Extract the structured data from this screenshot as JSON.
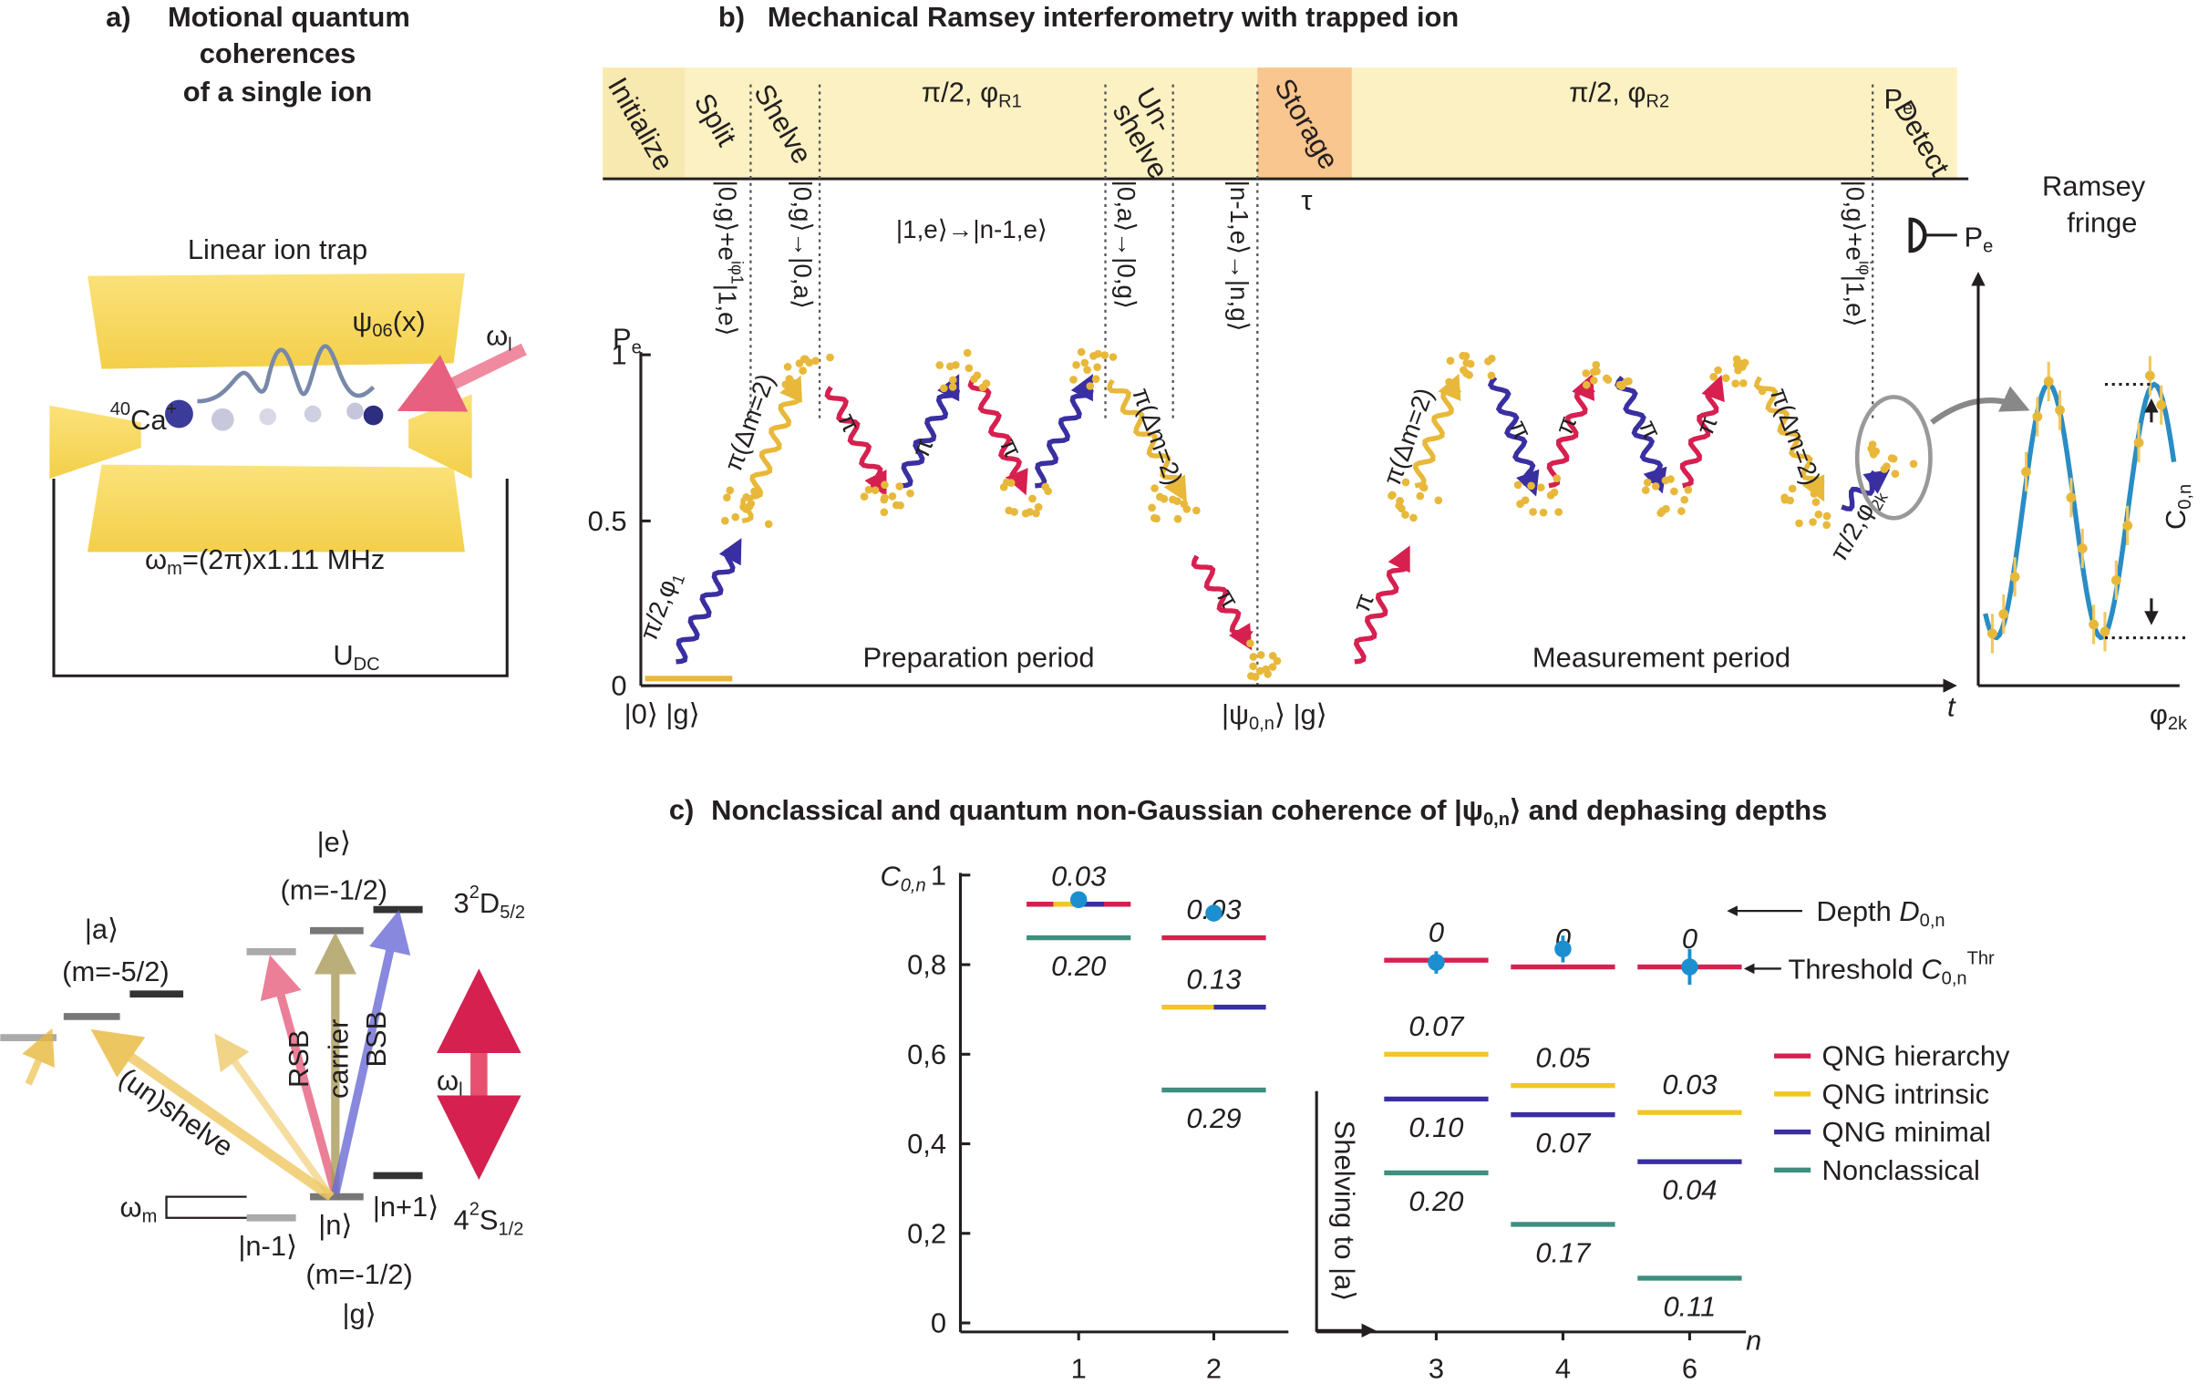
{
  "panel_a": {
    "label": "a)",
    "title": [
      "Motional quantum",
      "coherences",
      "of a single ion"
    ],
    "trap": "Linear ion trap",
    "psi": [
      "ψ",
      "06",
      "(x)"
    ],
    "omega_l": [
      "ω",
      "l"
    ],
    "ion": [
      "40",
      "Ca",
      "+"
    ],
    "omega_m": [
      "ω",
      "m",
      "=(2π)x1.11 MHz"
    ],
    "udc": [
      "U",
      "DC"
    ],
    "levels": {
      "e": "|e⟩",
      "e_m": "(m=-1/2)",
      "a": "|a⟩",
      "a_m": "(m=-5/2)",
      "d": [
        "3",
        "2",
        "D",
        "5/2"
      ],
      "s": [
        "4",
        "2",
        "S",
        "1/2"
      ],
      "omega_l": [
        "ω",
        "l"
      ],
      "rsb": "RSB",
      "carrier": "carrier",
      "bsb": "BSB",
      "shelve": "(un)shelve",
      "omega_m": [
        "ω",
        "m"
      ],
      "n_minus": "|n-1⟩",
      "n": "|n⟩",
      "n_plus": "|n+1⟩",
      "g_m": "(m=-1/2)",
      "g": "|g⟩"
    }
  },
  "panel_b": {
    "label": "b)",
    "title": "Mechanical Ramsey interferometry with trapped ion",
    "stages": {
      "initialize": "Initialize",
      "split": "Split",
      "shelve": "Shelve",
      "r1": [
        "π/2, φ",
        "R1"
      ],
      "unshelve": [
        "Un-",
        "shelve"
      ],
      "storage": "Storage",
      "tau": "τ",
      "r2": [
        "π/2, φ",
        "R2"
      ],
      "pe": [
        "P",
        "e"
      ],
      "detect": "Detect"
    },
    "states": {
      "split": [
        "|0,g⟩+e",
        "iφ1",
        "|1,e⟩"
      ],
      "shelve": "|0,g⟩→|0,a⟩",
      "shift": "|1,e⟩→|n-1,e⟩",
      "unshelve": "|0,a⟩→|0,g⟩",
      "store": "|n-1,e⟩→|n,g⟩",
      "detect": [
        "|0,g⟩+e",
        "iφ",
        "|1,e⟩"
      ]
    },
    "ylabel": [
      "P",
      "e"
    ],
    "yticks": [
      "1",
      "0.5",
      "0"
    ],
    "pulses": [
      [
        "π/2,φ",
        "1"
      ],
      "π(Δm=2)",
      "π",
      "π",
      "π",
      "π(Δm=2)",
      "π",
      "π",
      "π(Δm=2)",
      "π",
      "π",
      "π",
      "π",
      "π(Δm=2)",
      [
        "π/2,φ",
        "2k"
      ]
    ],
    "preparation": "Preparation period",
    "measurement": "Measurement period",
    "xlabel": "t",
    "start": "|0⟩ |g⟩",
    "end": [
      "|ψ",
      "0,n",
      "⟩ |g⟩"
    ],
    "fringe": {
      "title": [
        "Ramsey",
        "fringe"
      ],
      "pe": [
        "P",
        "e"
      ],
      "contrast": [
        "C",
        "0,n"
      ],
      "xlabel": [
        "φ",
        "2k"
      ]
    }
  },
  "chart_data": {
    "type": "levels",
    "label": "c)",
    "title": [
      "Nonclassical and quantum non-Gaussian coherence of |ψ",
      "0,n",
      "⟩ and dephasing depths"
    ],
    "ylabel": [
      "C",
      "0,n"
    ],
    "xlabel": "n",
    "categories": [
      "1",
      "2",
      "3",
      "4",
      "6"
    ],
    "ylim": [
      -0.02,
      1.03
    ],
    "yticks": [
      0,
      {
        "value": 0.2,
        "label": "0,2"
      },
      {
        "value": 0.4,
        "label": "0,4"
      },
      {
        "value": 0.6,
        "label": "0,6"
      },
      {
        "value": 0.8,
        "label": "0,8"
      },
      1
    ],
    "series": [
      {
        "name": "QNG hierarchy",
        "color": "#d6204f",
        "values": [
          0.935,
          0.86,
          0.81,
          0.795,
          0.795
        ],
        "depth_labels": [
          "0.03",
          "0.03",
          "0",
          "0",
          "0"
        ]
      },
      {
        "name": "QNG intrinsic",
        "color": "#f2c623",
        "values": [
          0.935,
          0.705,
          0.6,
          0.53,
          0.47
        ],
        "depth_labels": [
          null,
          "0.13",
          "0.07",
          "0.05",
          "0.03"
        ]
      },
      {
        "name": "QNG minimal",
        "color": "#3a2fa0",
        "values": [
          0.935,
          0.705,
          0.5,
          0.465,
          0.36
        ],
        "depth_labels": [
          null,
          null,
          "0.10",
          "0.07",
          "0.04"
        ]
      },
      {
        "name": "Nonclassical",
        "color": "#3d8f7e",
        "values": [
          0.86,
          0.52,
          0.335,
          0.22,
          0.1
        ],
        "depth_labels": [
          "0.20",
          "0.29",
          "0.20",
          "0.17",
          "0.11"
        ]
      }
    ],
    "measured": {
      "color": "#1b8fd0",
      "values": [
        0.945,
        0.915,
        0.805,
        0.835,
        0.795
      ],
      "errors": [
        0.01,
        0.01,
        0.025,
        0.03,
        0.04
      ]
    },
    "annotations": {
      "depth": [
        "Depth ",
        "D",
        "0,n"
      ],
      "threshold": [
        "Threshold ",
        "C",
        "0,n",
        "Thr"
      ],
      "shelving": "Shelving to |a⟩"
    }
  }
}
